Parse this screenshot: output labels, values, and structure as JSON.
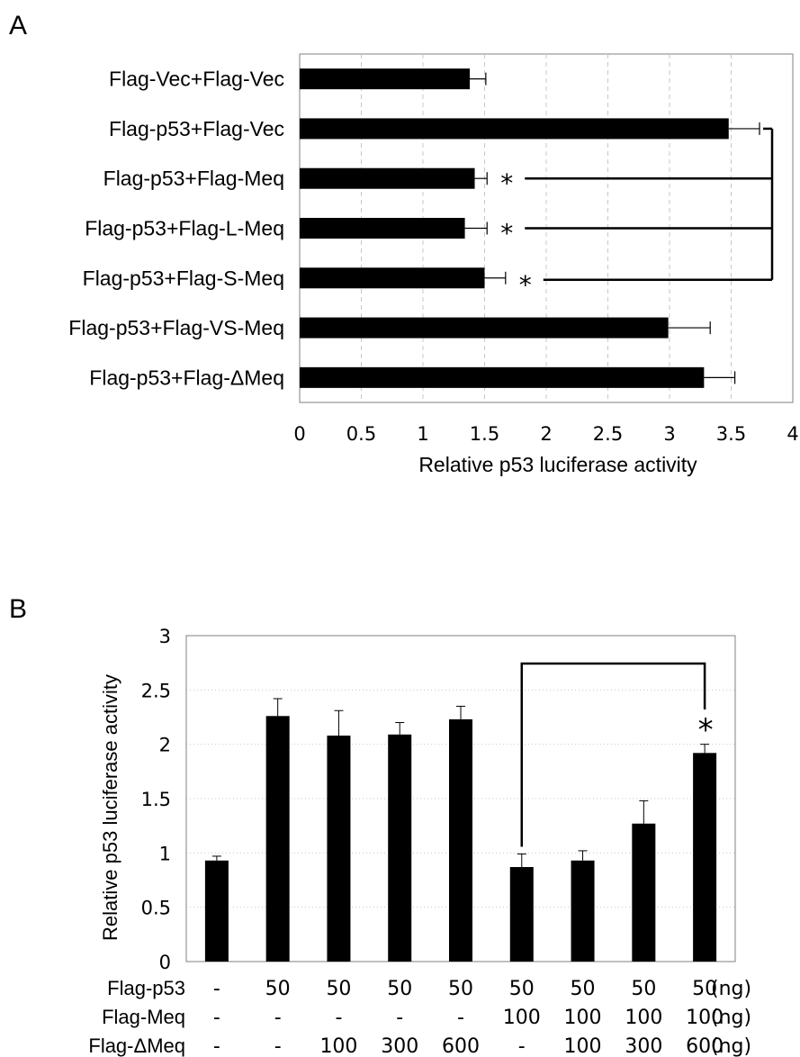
{
  "panel_a": {
    "letter": "A"
  },
  "panel_b": {
    "letter": "B"
  },
  "colors": {
    "bar": "#000000",
    "grid": "#c8c8c8",
    "frame": "#808080",
    "text": "#000000"
  },
  "chart_data": [
    {
      "type": "bar",
      "orientation": "horizontal",
      "categories": [
        "Flag-Vec+Flag-Vec",
        "Flag-p53+Flag-Vec",
        "Flag-p53+Flag-Meq",
        "Flag-p53+Flag-L-Meq",
        "Flag-p53+Flag-S-Meq",
        "Flag-p53+Flag-VS-Meq",
        "Flag-p53+Flag-ΔMeq"
      ],
      "values": [
        1.38,
        3.48,
        1.42,
        1.34,
        1.5,
        2.99,
        3.28
      ],
      "errors": [
        0.13,
        0.25,
        0.1,
        0.18,
        0.17,
        0.34,
        0.25
      ],
      "significance_marks": [
        "",
        "",
        "*",
        "*",
        "*",
        "",
        ""
      ],
      "comparison_bracket": {
        "from_category": 1,
        "to_categories": [
          2,
          3,
          4
        ]
      },
      "xlabel": "Relative p53 luciferase activity",
      "xlim": [
        0,
        4
      ],
      "xticks": [
        0,
        0.5,
        1,
        1.5,
        2,
        2.5,
        3,
        3.5,
        4
      ],
      "xtick_labels": [
        "0",
        "0.5",
        "1",
        "1.5",
        "2",
        "2.5",
        "3",
        "3.5",
        "4"
      ],
      "grid": "vertical dashed"
    },
    {
      "type": "bar",
      "orientation": "vertical",
      "values": [
        0.93,
        2.26,
        2.08,
        2.09,
        2.23,
        0.87,
        0.93,
        1.27,
        1.92
      ],
      "errors": [
        0.04,
        0.16,
        0.23,
        0.11,
        0.12,
        0.12,
        0.09,
        0.21,
        0.08
      ],
      "ylabel": "Relative p53 luciferase activity",
      "ylim": [
        0,
        3
      ],
      "yticks": [
        0,
        0.5,
        1,
        1.5,
        2,
        2.5,
        3
      ],
      "ytick_labels": [
        "0",
        "0.5",
        "1",
        "1.5",
        "2",
        "2.5",
        "3"
      ],
      "grid": "horizontal dotted",
      "significance": {
        "mark": "*",
        "from_bar": 5,
        "to_bar": 8
      },
      "conditions": [
        {
          "label": "Flag-p53",
          "unit": "(ng)",
          "values": [
            "-",
            "50",
            "50",
            "50",
            "50",
            "50",
            "50",
            "50",
            "50"
          ]
        },
        {
          "label": "Flag-Meq",
          "unit": "(ng)",
          "values": [
            "-",
            "-",
            "-",
            "-",
            "-",
            "100",
            "100",
            "100",
            "100"
          ]
        },
        {
          "label": "Flag-ΔMeq",
          "unit": "(ng)",
          "values": [
            "-",
            "-",
            "100",
            "300",
            "600",
            "-",
            "100",
            "300",
            "600"
          ]
        }
      ]
    }
  ]
}
